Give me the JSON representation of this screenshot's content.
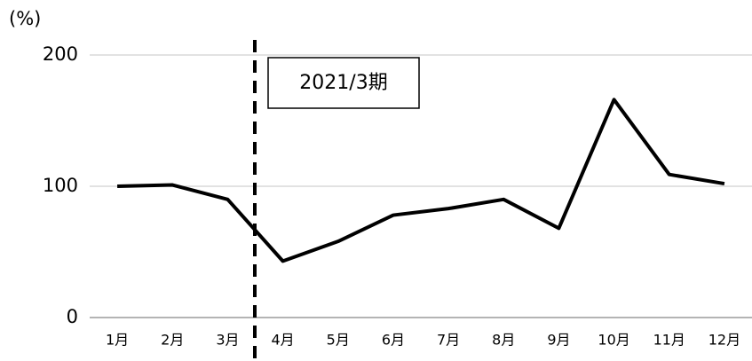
{
  "chart_data": {
    "type": "line",
    "y_axis_label": "(%)",
    "annotation": "2021/3期",
    "categories": [
      "1月",
      "2月",
      "3月",
      "4月",
      "5月",
      "6月",
      "7月",
      "8月",
      "9月",
      "10月",
      "11月",
      "12月"
    ],
    "series": [
      {
        "color": "#000000",
        "values": [
          100,
          101,
          90,
          43,
          58,
          78,
          83,
          90,
          68,
          166,
          109,
          102
        ]
      }
    ],
    "ylim": [
      0,
      200
    ],
    "yticks": [
      0,
      100,
      200
    ],
    "grid": true
  }
}
